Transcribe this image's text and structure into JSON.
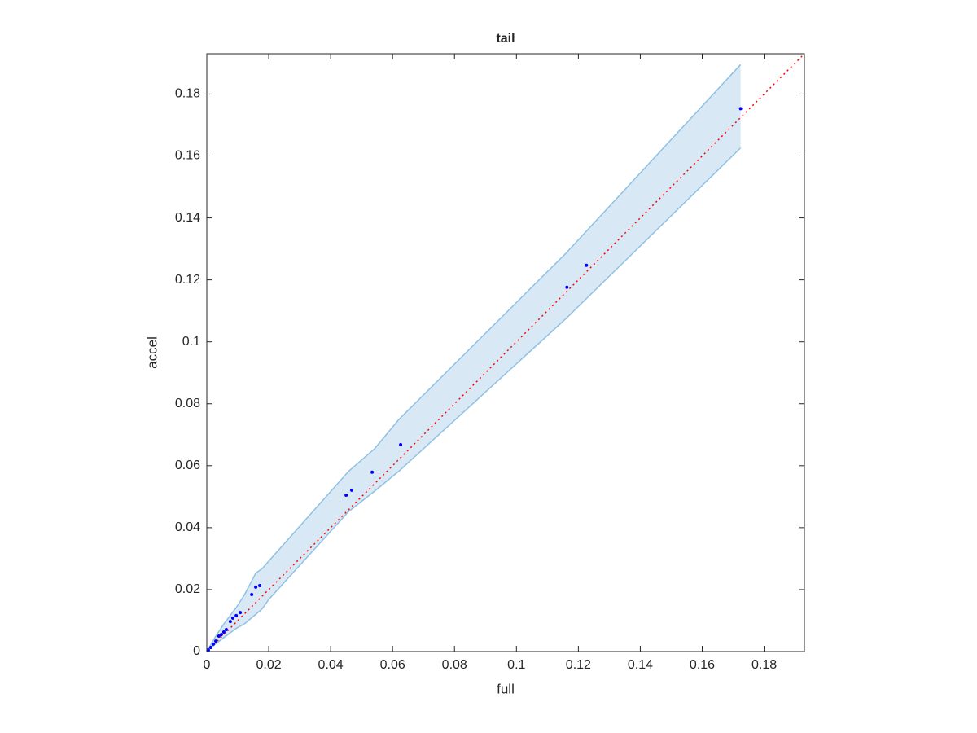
{
  "chart_data": {
    "type": "scatter",
    "title": "tail",
    "x_label": "full",
    "y_label": "accel",
    "color": "#0000ff",
    "x": [
      0.1724,
      0.1226,
      0.1163,
      0.0626,
      0.0534,
      0.0468,
      0.045,
      0.0171,
      0.0158,
      0.0145,
      0.0108,
      0.0095,
      0.0084,
      0.0076,
      0.0063,
      0.0055,
      0.0047,
      0.0039,
      0.0029,
      0.0021,
      0.0013,
      0.0005
    ],
    "values": [
      0.1753,
      0.1247,
      0.1176,
      0.0668,
      0.0579,
      0.0521,
      0.0505,
      0.0213,
      0.0208,
      0.0184,
      0.0126,
      0.0116,
      0.0108,
      0.0097,
      0.0071,
      0.0063,
      0.0055,
      0.005,
      0.0034,
      0.0024,
      0.0013,
      0.0005
    ],
    "band": {
      "fill": "#d9e8f5",
      "stroke": "#8fc1e3",
      "x": [
        0,
        0.0029,
        0.0055,
        0.0095,
        0.0121,
        0.0158,
        0.0179,
        0.02,
        0.0458,
        0.0542,
        0.0621,
        0.1161,
        0.1724
      ],
      "upper": [
        0,
        0.005,
        0.0089,
        0.0142,
        0.0182,
        0.0253,
        0.0268,
        0.0292,
        0.0582,
        0.0655,
        0.075,
        0.1287,
        0.1895
      ],
      "lower": [
        0,
        0.0025,
        0.0045,
        0.0075,
        0.0089,
        0.012,
        0.0138,
        0.0168,
        0.0452,
        0.0518,
        0.0583,
        0.1076,
        0.1626
      ]
    },
    "reference_line": {
      "color": "#ff0000",
      "x": [
        0,
        0.193
      ],
      "values": [
        0,
        0.193
      ]
    },
    "xlim": [
      0,
      0.193
    ],
    "ylim": [
      0,
      0.193
    ],
    "xticks": [
      0,
      0.02,
      0.04,
      0.06,
      0.08,
      0.1,
      0.12,
      0.14,
      0.16,
      0.18
    ],
    "yticks": [
      0,
      0.02,
      0.04,
      0.06,
      0.08,
      0.1,
      0.12,
      0.14,
      0.16,
      0.18
    ],
    "grid": false
  }
}
